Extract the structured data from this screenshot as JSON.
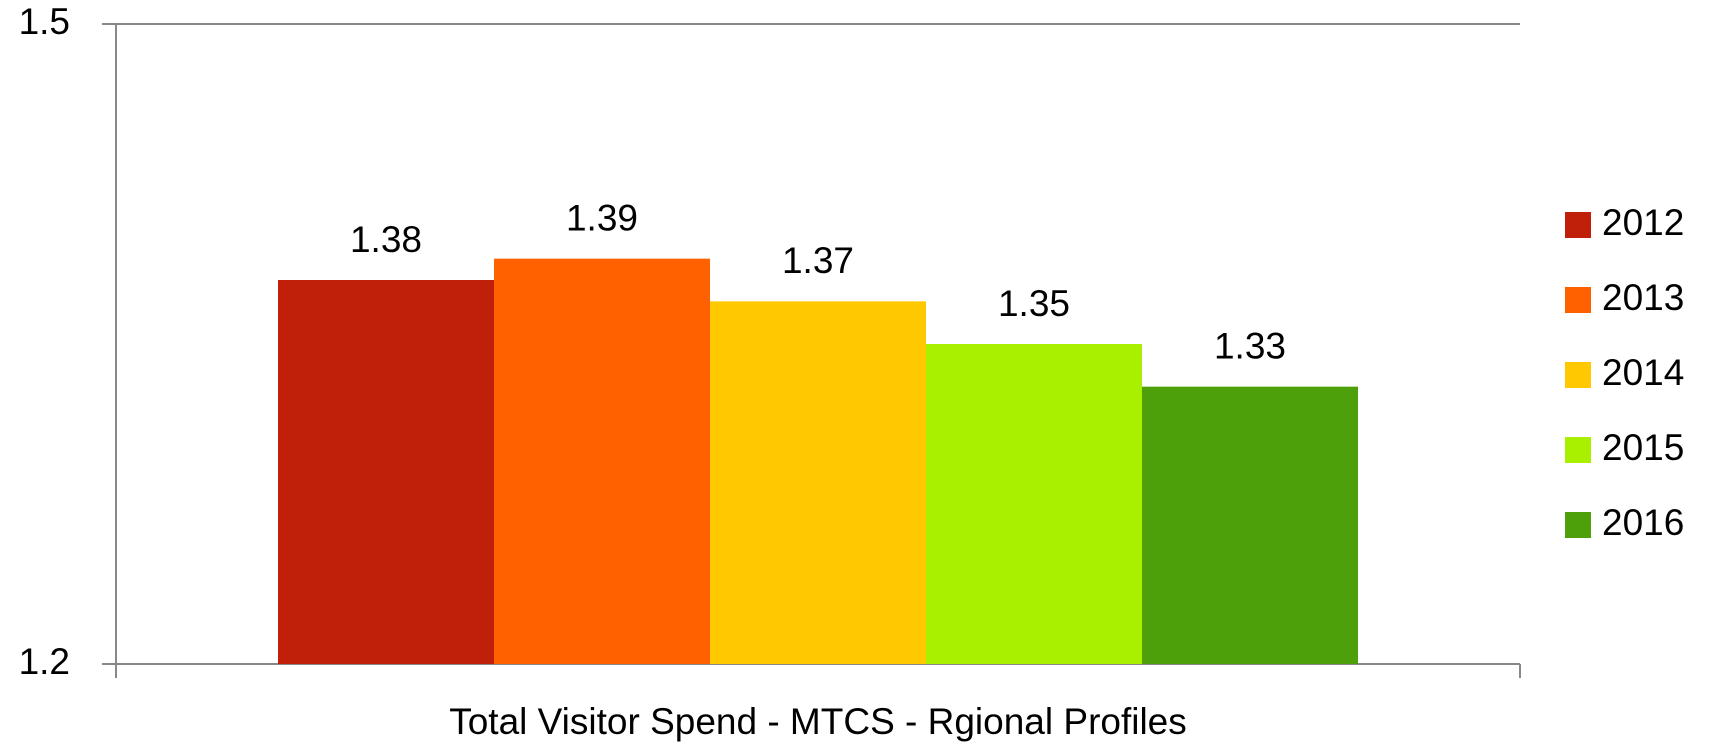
{
  "chart_data": {
    "type": "bar",
    "categories": [
      "Total Visitor Spend - MTCS - Rgional Profiles"
    ],
    "series": [
      {
        "name": "2012",
        "color": "#c0200a",
        "values": [
          1.38
        ]
      },
      {
        "name": "2013",
        "color": "#ff6000",
        "values": [
          1.39
        ]
      },
      {
        "name": "2014",
        "color": "#ffc800",
        "values": [
          1.37
        ]
      },
      {
        "name": "2015",
        "color": "#a8f000",
        "values": [
          1.35
        ]
      },
      {
        "name": "2016",
        "color": "#4ea00a",
        "values": [
          1.33
        ]
      }
    ],
    "ylim": [
      1.2,
      1.5
    ],
    "yticks": [
      1.2,
      1.5
    ],
    "grid": true,
    "legend": "right"
  }
}
